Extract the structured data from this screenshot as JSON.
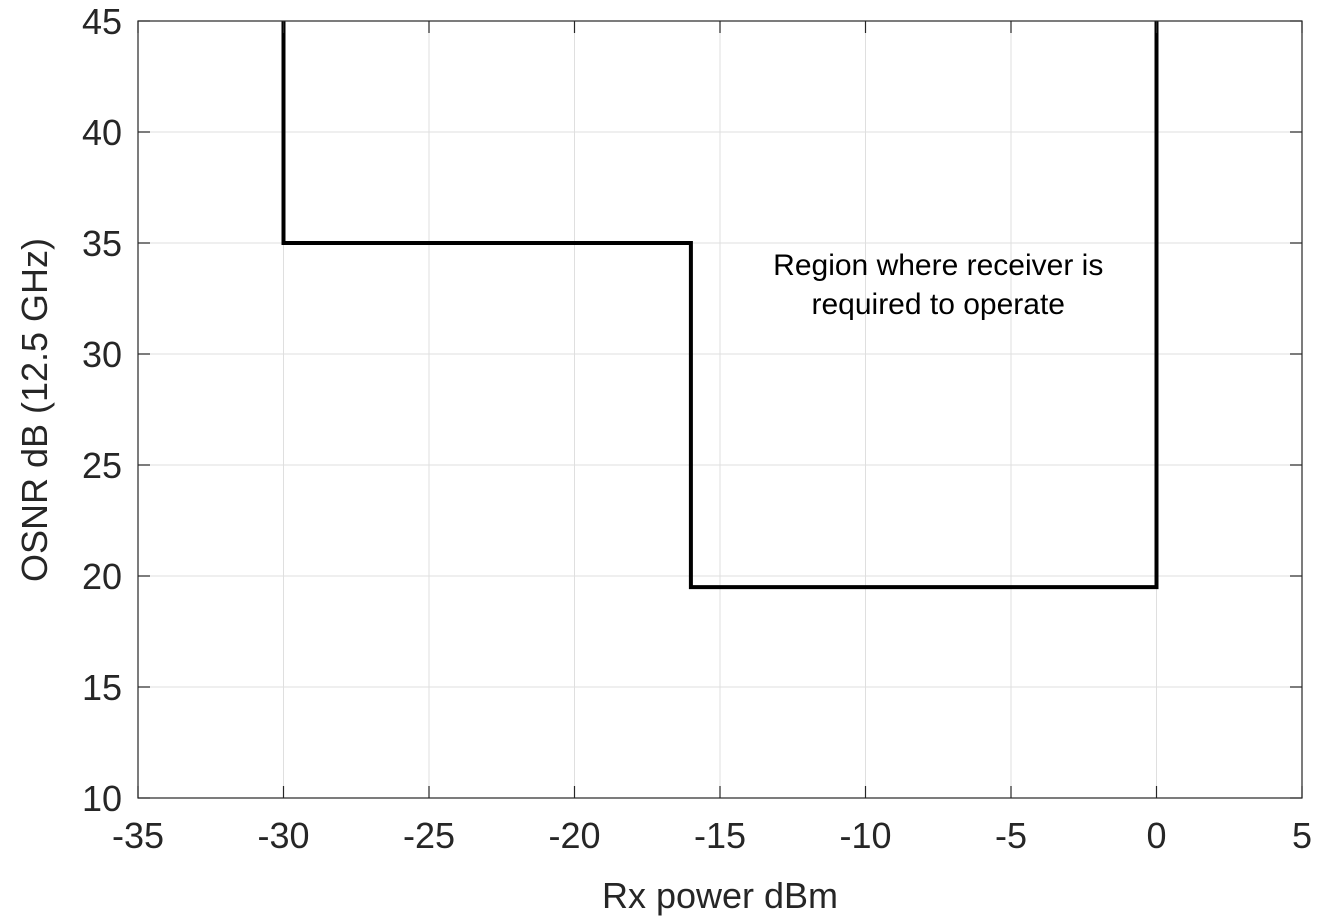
{
  "chart_data": {
    "type": "line",
    "title": "",
    "xlabel": "Rx power dBm",
    "ylabel": "OSNR dB (12.5 GHz)",
    "xlim": [
      -35,
      5
    ],
    "ylim": [
      10,
      45
    ],
    "xticks": [
      -35,
      -30,
      -25,
      -20,
      -15,
      -10,
      -5,
      0,
      5
    ],
    "yticks": [
      10,
      15,
      20,
      25,
      30,
      35,
      40,
      45
    ],
    "grid": true,
    "series": [
      {
        "x": [
          -30,
          -30,
          -16,
          -16,
          0,
          0
        ],
        "y": [
          45,
          35,
          35,
          19.5,
          19.5,
          45
        ],
        "color": "#000000"
      }
    ],
    "annotations": [
      {
        "lines": [
          "Region where receiver is",
          "required to operate"
        ],
        "x": -7.5,
        "y": 34
      }
    ]
  }
}
